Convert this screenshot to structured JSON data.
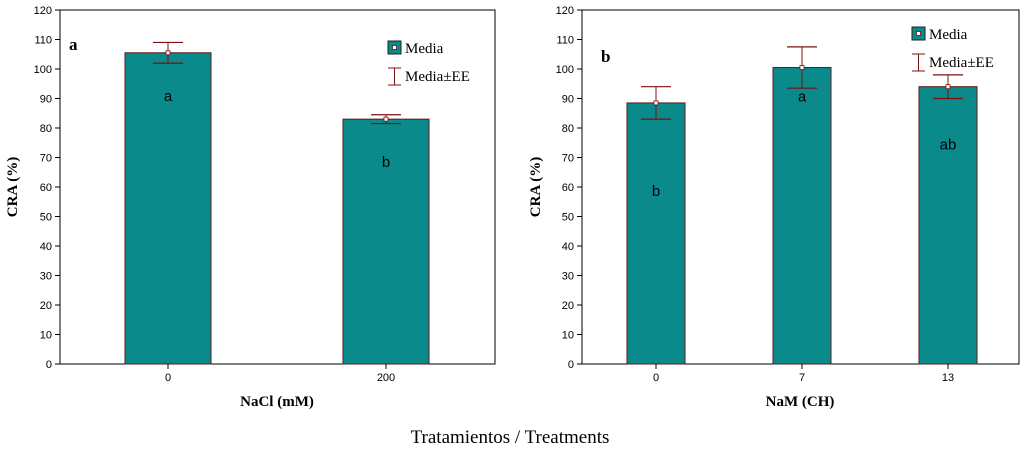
{
  "caption": "Tratamientos / Treatments",
  "colors": {
    "bar_fill": "#0b8a8c",
    "bar_stroke": "#5a1a1a",
    "error_bar": "#7a1010",
    "axis": "#000000"
  },
  "chart_data": [
    {
      "type": "bar",
      "panel_label": "a",
      "xlabel": "NaCl (mM)",
      "ylabel": "CRA (%)",
      "ylim": [
        0,
        120
      ],
      "yticks": [
        0,
        10,
        20,
        30,
        40,
        50,
        60,
        70,
        80,
        90,
        100,
        110,
        120
      ],
      "categories": [
        "0",
        "200"
      ],
      "values": [
        105.5,
        83
      ],
      "errors": [
        3.5,
        1.5
      ],
      "significance": [
        "a",
        "b"
      ],
      "legend": {
        "mean": "Media",
        "mean_se": "Media±EE",
        "position": "top-right"
      }
    },
    {
      "type": "bar",
      "panel_label": "b",
      "xlabel": "NaM (CH)",
      "ylabel": "CRA (%)",
      "ylim": [
        0,
        120
      ],
      "yticks": [
        0,
        10,
        20,
        30,
        40,
        50,
        60,
        70,
        80,
        90,
        100,
        110,
        120
      ],
      "categories": [
        "0",
        "7",
        "13"
      ],
      "values": [
        88.5,
        100.5,
        94
      ],
      "errors": [
        5.5,
        7,
        4
      ],
      "significance": [
        "b",
        "a",
        "ab"
      ],
      "legend": {
        "mean": "Media",
        "mean_se": "Media±EE",
        "position": "top-right"
      }
    }
  ]
}
